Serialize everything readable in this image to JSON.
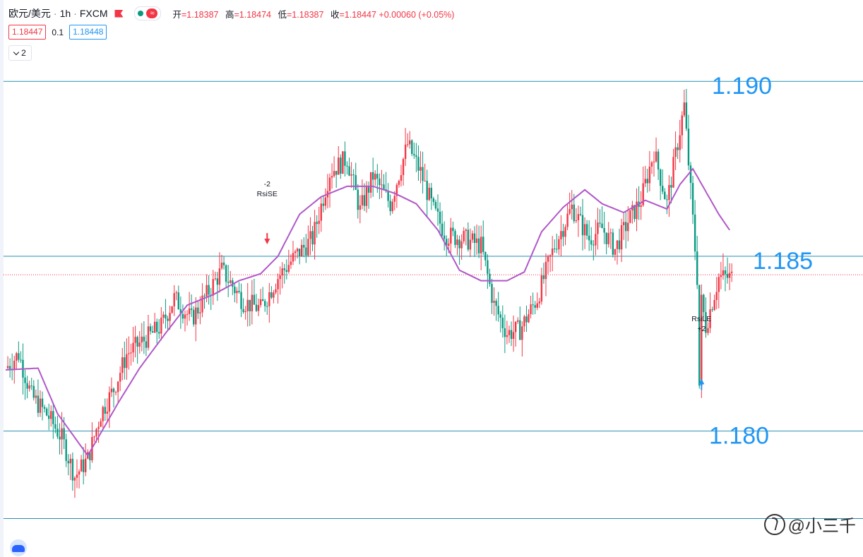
{
  "header": {
    "symbol": "欧元/美元",
    "interval": "1h",
    "broker": "FXCM",
    "wave_glyph": "≈",
    "ohlc": [
      {
        "key": "开",
        "value": "=1.18387"
      },
      {
        "key": "高",
        "value": "=1.18474"
      },
      {
        "key": "低",
        "value": "=1.18387"
      },
      {
        "key": "收",
        "value": "=1.18447 +0.00060 (+0.05%)"
      }
    ]
  },
  "prices": {
    "sell": "1.18447",
    "spread": "0.1",
    "buy": "1.18448"
  },
  "indicators_toggle": {
    "count": "2"
  },
  "watermark": {
    "text": "@小三千"
  },
  "colors": {
    "up": "#f23645",
    "down": "#089981",
    "ma": "#b058c8",
    "level": "#2a8fb0",
    "level_label": "#2196f3",
    "current": "#f23645",
    "signal_sell": "#f23645",
    "signal_buy": "#2196f3"
  },
  "chart_data": {
    "type": "candlestick",
    "ylim": [
      1.17745,
      1.19055
    ],
    "levels": [
      {
        "price": 1.19,
        "label": "1.190"
      },
      {
        "price": 1.185,
        "label": "1.185"
      },
      {
        "price": 1.18,
        "label": "1.180"
      },
      {
        "price": 1.1775,
        "label": ""
      }
    ],
    "current_price": 1.18447,
    "close_path": [
      [
        0,
        1.1818
      ],
      [
        6,
        1.1822
      ],
      [
        12,
        1.181
      ],
      [
        20,
        1.1804
      ],
      [
        26,
        1.1798
      ],
      [
        32,
        1.1787
      ],
      [
        38,
        1.1792
      ],
      [
        44,
        1.1805
      ],
      [
        50,
        1.1812
      ],
      [
        56,
        1.1822
      ],
      [
        64,
        1.1826
      ],
      [
        72,
        1.183
      ],
      [
        78,
        1.1838
      ],
      [
        86,
        1.1832
      ],
      [
        92,
        1.1838
      ],
      [
        100,
        1.1846
      ],
      [
        110,
        1.1837
      ],
      [
        118,
        1.1835
      ],
      [
        126,
        1.1844
      ],
      [
        134,
        1.185
      ],
      [
        142,
        1.1855
      ],
      [
        150,
        1.1874
      ],
      [
        158,
        1.1878
      ],
      [
        164,
        1.1863
      ],
      [
        170,
        1.1873
      ],
      [
        178,
        1.1865
      ],
      [
        186,
        1.1882
      ],
      [
        192,
        1.1874
      ],
      [
        198,
        1.1863
      ],
      [
        204,
        1.1856
      ],
      [
        212,
        1.1855
      ],
      [
        220,
        1.1853
      ],
      [
        226,
        1.1836
      ],
      [
        232,
        1.1828
      ],
      [
        238,
        1.1829
      ],
      [
        246,
        1.1838
      ],
      [
        254,
        1.1853
      ],
      [
        262,
        1.1864
      ],
      [
        270,
        1.1855
      ],
      [
        276,
        1.1858
      ],
      [
        282,
        1.1852
      ],
      [
        288,
        1.186
      ],
      [
        294,
        1.1866
      ],
      [
        300,
        1.188
      ],
      [
        306,
        1.1865
      ],
      [
        314,
        1.1893
      ],
      [
        320,
        1.1844
      ],
      [
        324,
        1.183
      ],
      [
        330,
        1.1844
      ],
      [
        336,
        1.1844
      ]
    ],
    "ma_path": [
      [
        0,
        1.18175
      ],
      [
        15,
        1.1818
      ],
      [
        24,
        1.1805
      ],
      [
        38,
        1.1793
      ],
      [
        52,
        1.1808
      ],
      [
        62,
        1.1818
      ],
      [
        74,
        1.1828
      ],
      [
        84,
        1.1836
      ],
      [
        96,
        1.1839
      ],
      [
        108,
        1.1843
      ],
      [
        118,
        1.1845
      ],
      [
        126,
        1.185
      ],
      [
        136,
        1.1862
      ],
      [
        146,
        1.1867
      ],
      [
        158,
        1.187
      ],
      [
        170,
        1.187
      ],
      [
        180,
        1.1868
      ],
      [
        190,
        1.1865
      ],
      [
        200,
        1.18575
      ],
      [
        210,
        1.1846
      ],
      [
        220,
        1.1843
      ],
      [
        232,
        1.1843
      ],
      [
        240,
        1.18455
      ],
      [
        248,
        1.1857
      ],
      [
        258,
        1.1864
      ],
      [
        268,
        1.1869
      ],
      [
        276,
        1.1865
      ],
      [
        286,
        1.18625
      ],
      [
        296,
        1.1866
      ],
      [
        306,
        1.18635
      ],
      [
        312,
        1.18705
      ],
      [
        318,
        1.1875
      ],
      [
        324,
        1.18685
      ],
      [
        330,
        1.1862
      ],
      [
        335,
        1.18575
      ]
    ],
    "signals": [
      {
        "type": "sell",
        "qty": "-2",
        "name": "RsiSE"
      },
      {
        "type": "buy",
        "qty": "+2",
        "name": "RsiLE"
      }
    ]
  }
}
